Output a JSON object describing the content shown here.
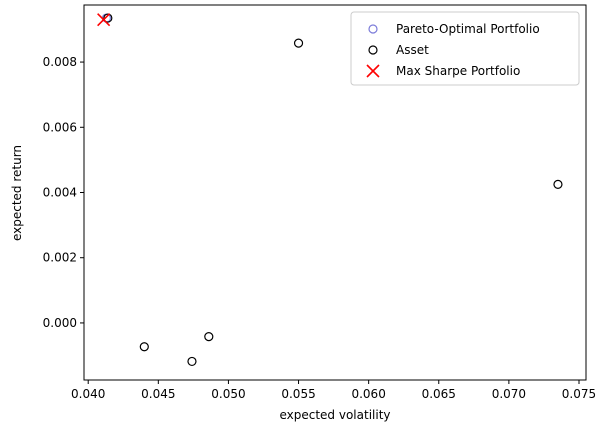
{
  "chart_data": {
    "type": "scatter",
    "xlabel": "expected volatility",
    "ylabel": "expected return",
    "xlim": [
      0.0397,
      0.0755
    ],
    "ylim": [
      -0.00175,
      0.00975
    ],
    "xticks": [
      0.04,
      0.045,
      0.05,
      0.055,
      0.06,
      0.065,
      0.07,
      0.075
    ],
    "xtick_labels": [
      "0.040",
      "0.045",
      "0.050",
      "0.055",
      "0.060",
      "0.065",
      "0.070",
      "0.075"
    ],
    "yticks": [
      0.0,
      0.002,
      0.004,
      0.006,
      0.008
    ],
    "ytick_labels": [
      "0.000",
      "0.002",
      "0.004",
      "0.006",
      "0.008"
    ],
    "grid": false,
    "legend_position": "top-right",
    "series": [
      {
        "name": "Pareto-Optimal Portfolio",
        "marker": "hollow-circle",
        "color": "#7b7bd9",
        "points": [
          {
            "x": 0.0413,
            "y": 0.00935
          }
        ]
      },
      {
        "name": "Asset",
        "marker": "hollow-circle",
        "color": "#000000",
        "points": [
          {
            "x": 0.0414,
            "y": 0.00935
          },
          {
            "x": 0.055,
            "y": 0.00858
          },
          {
            "x": 0.0735,
            "y": 0.00425
          },
          {
            "x": 0.0486,
            "y": -0.00042
          },
          {
            "x": 0.044,
            "y": -0.00073
          },
          {
            "x": 0.0474,
            "y": -0.00118
          }
        ]
      },
      {
        "name": "Max Sharpe Portfolio",
        "marker": "x",
        "color": "#ff0000",
        "points": [
          {
            "x": 0.0411,
            "y": 0.0093
          }
        ]
      }
    ]
  }
}
